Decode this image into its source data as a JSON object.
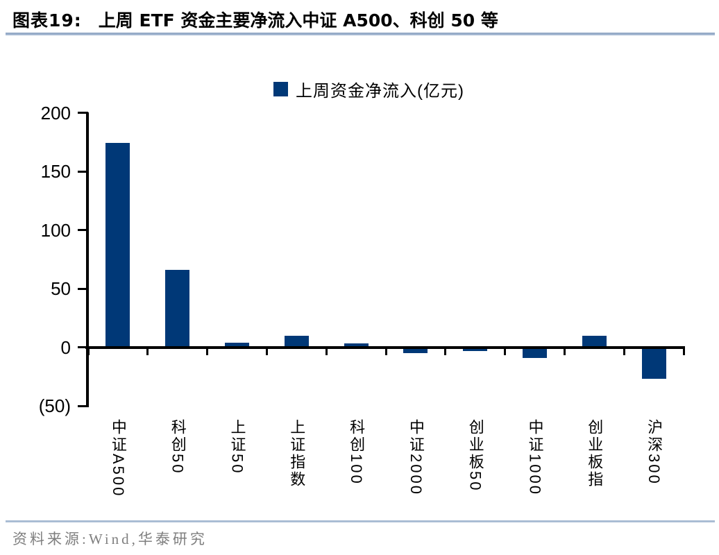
{
  "header": {
    "title_label": "图表19:",
    "title_text": "上周 ETF 资金主要净流入中证 A500、科创 50 等"
  },
  "chart_data": {
    "type": "bar",
    "title": "上周 ETF 资金主要净流入中证 A500、科创 50 等",
    "legend": "上周资金净流入(亿元)",
    "legend_position": "top-center",
    "categories": [
      "中证A500",
      "科创50",
      "上证50",
      "上证指数",
      "科创100",
      "中证2000",
      "创业板50",
      "中证1000",
      "创业板指",
      "沪深300"
    ],
    "values": [
      174,
      66,
      4,
      10,
      3,
      -5,
      -3,
      -9,
      10,
      -27
    ],
    "unit": "亿元",
    "xlabel": "",
    "ylabel": "",
    "ylim": [
      -50,
      200
    ],
    "ytick_interval": 50,
    "ytick_labels": [
      "200",
      "150",
      "100",
      "50",
      "0",
      "(50)"
    ],
    "negative_number_format": "parentheses",
    "grid": false,
    "bar_color": "#003877",
    "axis_color": "#000000"
  },
  "footer": {
    "source": "资料来源:Wind,华泰研究"
  },
  "colors": {
    "title_underline": "#9bafcb",
    "footer_rule": "#aabdd4",
    "source_text": "#7f7f7f"
  }
}
